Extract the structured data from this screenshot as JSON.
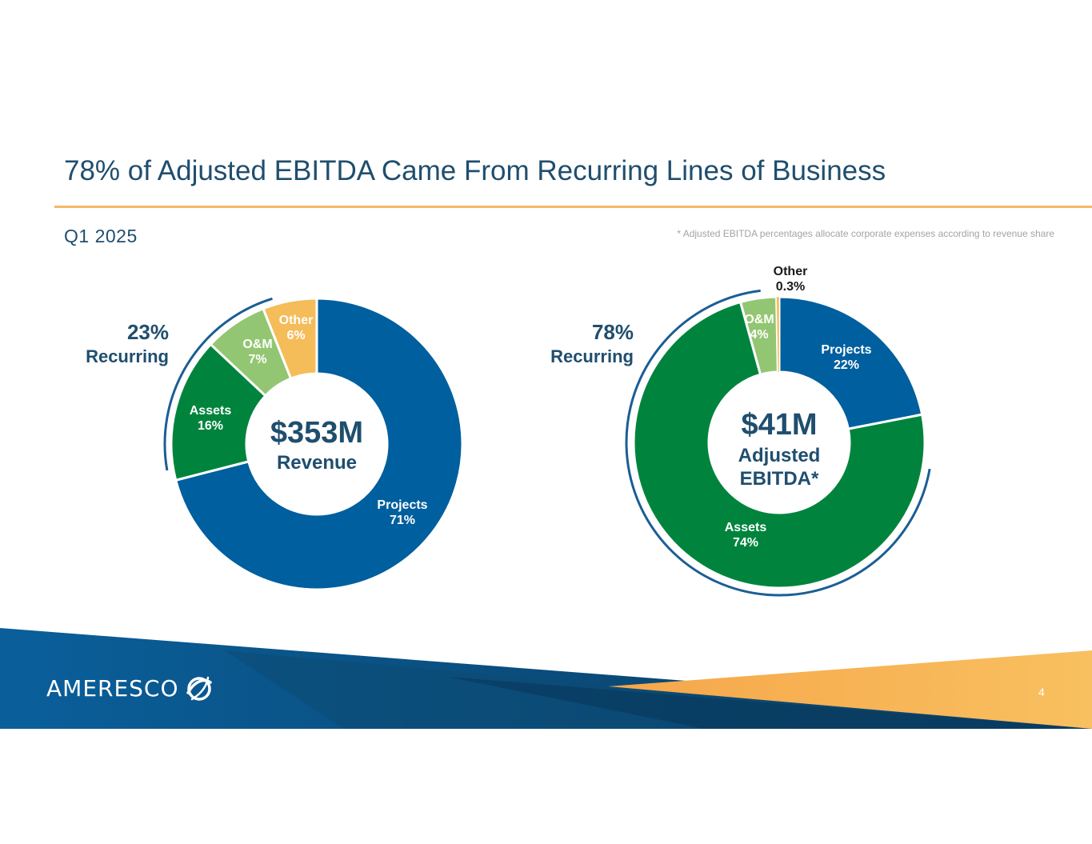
{
  "header": {
    "title": "78% of Adjusted EBITDA Came From Recurring Lines of Business",
    "subtitle": "Q1 2025",
    "footnote": "* Adjusted EBITDA percentages allocate corporate expenses according to revenue share"
  },
  "footer": {
    "logo_text": "AMERESCO",
    "page_number": "4"
  },
  "colors": {
    "projects": "#005f9e",
    "assets": "#00843d",
    "om": "#93c672",
    "other": "#f5bc5a",
    "heading": "#1f4e6e",
    "arc": "#1b5e94"
  },
  "chart_data": [
    {
      "type": "pie",
      "variant": "donut",
      "center_value": "$353M",
      "center_label": "Revenue",
      "recurring_pct": "23%",
      "recurring_label": "Recurring",
      "slices": [
        {
          "key": "projects",
          "name": "Projects",
          "value": 71,
          "label": "71%"
        },
        {
          "key": "assets",
          "name": "Assets",
          "value": 16,
          "label": "16%"
        },
        {
          "key": "om",
          "name": "O&M",
          "value": 7,
          "label": "7%"
        },
        {
          "key": "other",
          "name": "Other",
          "value": 6,
          "label": "6%"
        }
      ]
    },
    {
      "type": "pie",
      "variant": "donut",
      "center_value": "$41M",
      "center_label": "Adjusted EBITDA*",
      "recurring_pct": "78%",
      "recurring_label": "Recurring",
      "slices": [
        {
          "key": "projects",
          "name": "Projects",
          "value": 22,
          "label": "22%"
        },
        {
          "key": "assets",
          "name": "Assets",
          "value": 74,
          "label": "74%"
        },
        {
          "key": "om",
          "name": "O&M",
          "value": 4,
          "label": "4%"
        },
        {
          "key": "other",
          "name": "Other",
          "value": 0.3,
          "label": "0.3%"
        }
      ]
    }
  ]
}
